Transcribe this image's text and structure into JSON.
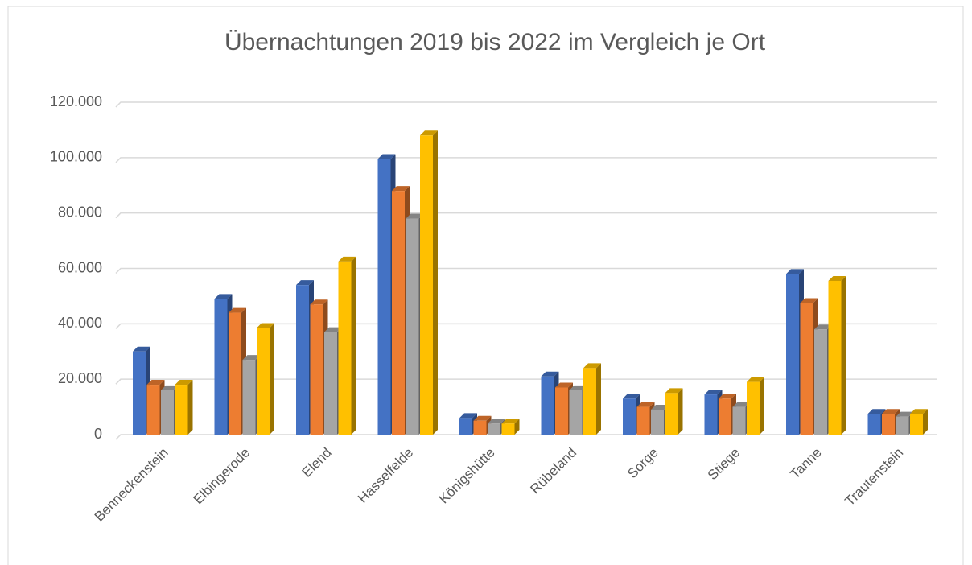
{
  "chart_data": {
    "type": "bar3d",
    "title": "Übernachtungen 2019 bis 2022 im Vergleich je Ort",
    "categories": [
      "Benneckenstein",
      "Elbingerode",
      "Elend",
      "Hasselfelde",
      "Königshütte",
      "Rübeland",
      "Sorge",
      "Stiege",
      "Tanne",
      "Trautenstein"
    ],
    "series": [
      {
        "color": "#4472c4",
        "values": [
          30000,
          49000,
          54000,
          99500,
          6000,
          21000,
          13000,
          14500,
          58000,
          7500
        ]
      },
      {
        "color": "#ed7d31",
        "values": [
          18000,
          44000,
          47000,
          88000,
          5000,
          17000,
          10000,
          13000,
          47500,
          7500
        ]
      },
      {
        "color": "#a5a5a5",
        "values": [
          16000,
          27000,
          37000,
          78000,
          4000,
          16000,
          9000,
          10000,
          38000,
          6500
        ]
      },
      {
        "color": "#ffc000",
        "values": [
          18000,
          38500,
          62500,
          108000,
          4000,
          24000,
          15000,
          19000,
          55500,
          7500
        ]
      }
    ],
    "ylim": [
      0,
      120000
    ],
    "yticks": [
      0,
      {
        "value": 20000,
        "label": "20.000"
      },
      {
        "value": 40000,
        "label": "40.000"
      },
      {
        "value": 60000,
        "label": "60.000"
      },
      {
        "value": 80000,
        "label": "80.000"
      },
      {
        "value": 100000,
        "label": "100.000"
      },
      {
        "value": 120000,
        "label": "120.000"
      }
    ],
    "grid": true
  }
}
